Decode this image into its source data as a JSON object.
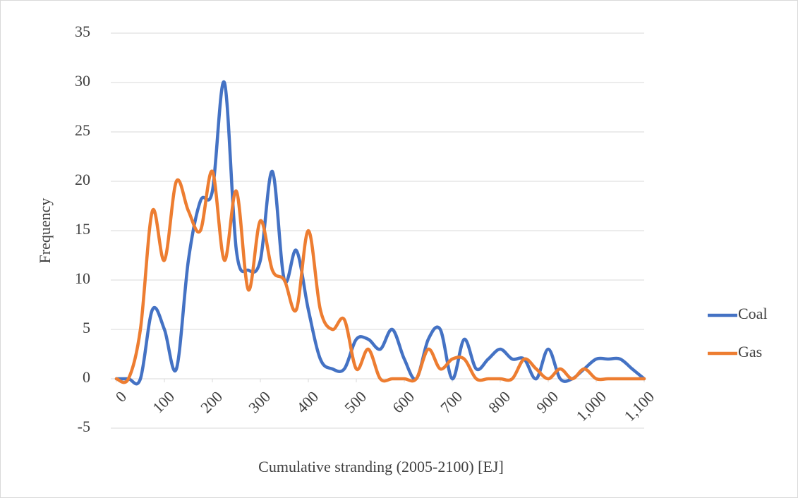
{
  "chart_data": {
    "type": "line",
    "x_label": "Cumulative stranding (2005-2100) [EJ]",
    "y_label": "Frequency",
    "x": [
      0,
      25,
      50,
      75,
      100,
      125,
      150,
      175,
      200,
      225,
      250,
      275,
      300,
      325,
      350,
      375,
      400,
      425,
      450,
      475,
      500,
      525,
      550,
      575,
      600,
      625,
      650,
      675,
      700,
      725,
      750,
      775,
      800,
      825,
      850,
      875,
      900,
      925,
      950,
      975,
      1000,
      1025,
      1050,
      1075,
      1100
    ],
    "series": [
      {
        "name": "Coal",
        "color": "#4472c4",
        "values": [
          0,
          0,
          0,
          7,
          5,
          1,
          12,
          18,
          19,
          30,
          13,
          11,
          12,
          21,
          10,
          13,
          7,
          2,
          1,
          1,
          4,
          4,
          3,
          5,
          2,
          0,
          4,
          5,
          0,
          4,
          1,
          2,
          3,
          2,
          2,
          0,
          3,
          0,
          0,
          1,
          2,
          2,
          2,
          1,
          0
        ]
      },
      {
        "name": "Gas",
        "color": "#ed7d31",
        "values": [
          0,
          0,
          5,
          17,
          12,
          20,
          17,
          15,
          21,
          12,
          19,
          9,
          16,
          11,
          10,
          7,
          15,
          7,
          5,
          6,
          1,
          3,
          0,
          0,
          0,
          0,
          3,
          1,
          2,
          2,
          0,
          0,
          0,
          0,
          2,
          1,
          0,
          1,
          0,
          1,
          0,
          0,
          0,
          0,
          0
        ]
      }
    ],
    "xlim": [
      0,
      1100
    ],
    "xticks": [
      0,
      100,
      200,
      300,
      400,
      500,
      600,
      700,
      800,
      900,
      {
        "value": 1000,
        "label": "1,000"
      },
      {
        "value": 1100,
        "label": "1,100"
      }
    ],
    "ylim": [
      -5,
      35
    ],
    "yticks": [
      -5,
      0,
      5,
      10,
      15,
      20,
      25,
      30,
      35
    ],
    "grid": true,
    "smooth": true,
    "legend": "right"
  }
}
